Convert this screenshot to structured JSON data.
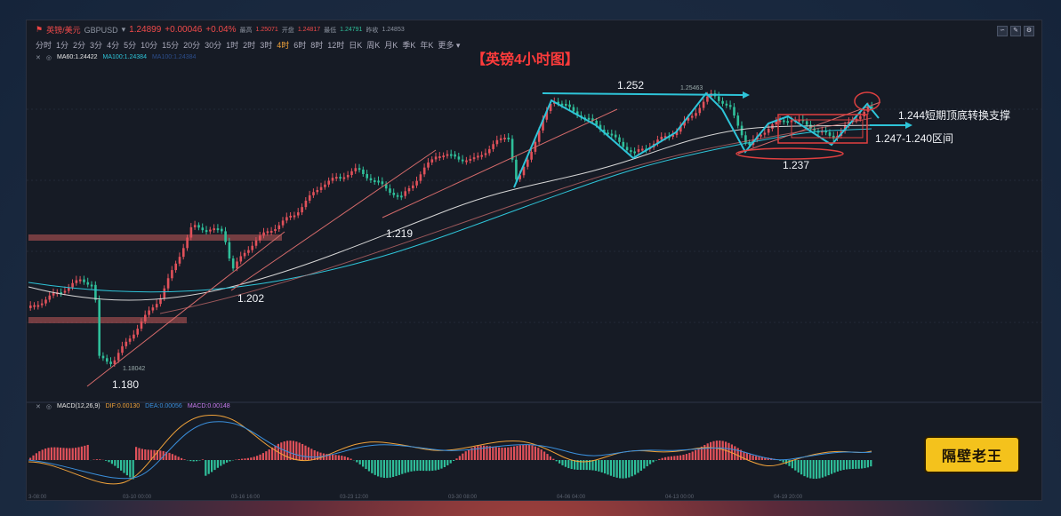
{
  "header": {
    "pair_name": "英镑/美元",
    "symbol": "GBPUSD",
    "price": "1.24899",
    "change": "+0.00046",
    "change_pct": "+0.04%",
    "high_label": "最高",
    "high": "1.25071",
    "open_label": "开盘",
    "open": "1.24817",
    "low_label": "最低",
    "low": "1.24791",
    "prev_close_label": "昨收",
    "prev_close": "1.24853"
  },
  "timeframes": [
    "分时",
    "1分",
    "2分",
    "3分",
    "4分",
    "5分",
    "10分",
    "15分",
    "20分",
    "30分",
    "1时",
    "2时",
    "3时",
    "4时",
    "6时",
    "8时",
    "12时",
    "日K",
    "周K",
    "月K",
    "季K",
    "年K",
    "更多"
  ],
  "active_timeframe": "4时",
  "ma": {
    "ma60": "MA60:1.24422",
    "ma100": "MA100:1.24384",
    "ma_third": "MA100:1.24384"
  },
  "title": "【英镑4小时图】",
  "annotations": {
    "a1252": "1.252",
    "a125463": "1.25463",
    "a1244": "1.244短期顶底转换支撑",
    "a1247": "1.247-1.240区间",
    "a1237": "1.237",
    "a1219": "1.219",
    "a1202": "1.202",
    "a118042": "1.18042",
    "a1180": "1.180"
  },
  "macd": {
    "params": "MACD(12,26,9)",
    "dif": "DIF:0.00130",
    "dea": "DEA:0.00056",
    "macd": "MACD:0.00148"
  },
  "badge": "隔壁老王",
  "x_axis": [
    "3-08:00",
    "03-10 00:00",
    "03-16 16:00",
    "03-23 12:00",
    "03-30 08:00",
    "04-06 04:00",
    "04-13 00:00",
    "04-19 20:00"
  ],
  "colors": {
    "up": "#e0515a",
    "down": "#2fbf9a",
    "trend": "#2ec4d8",
    "title": "#ff3b3b"
  }
}
